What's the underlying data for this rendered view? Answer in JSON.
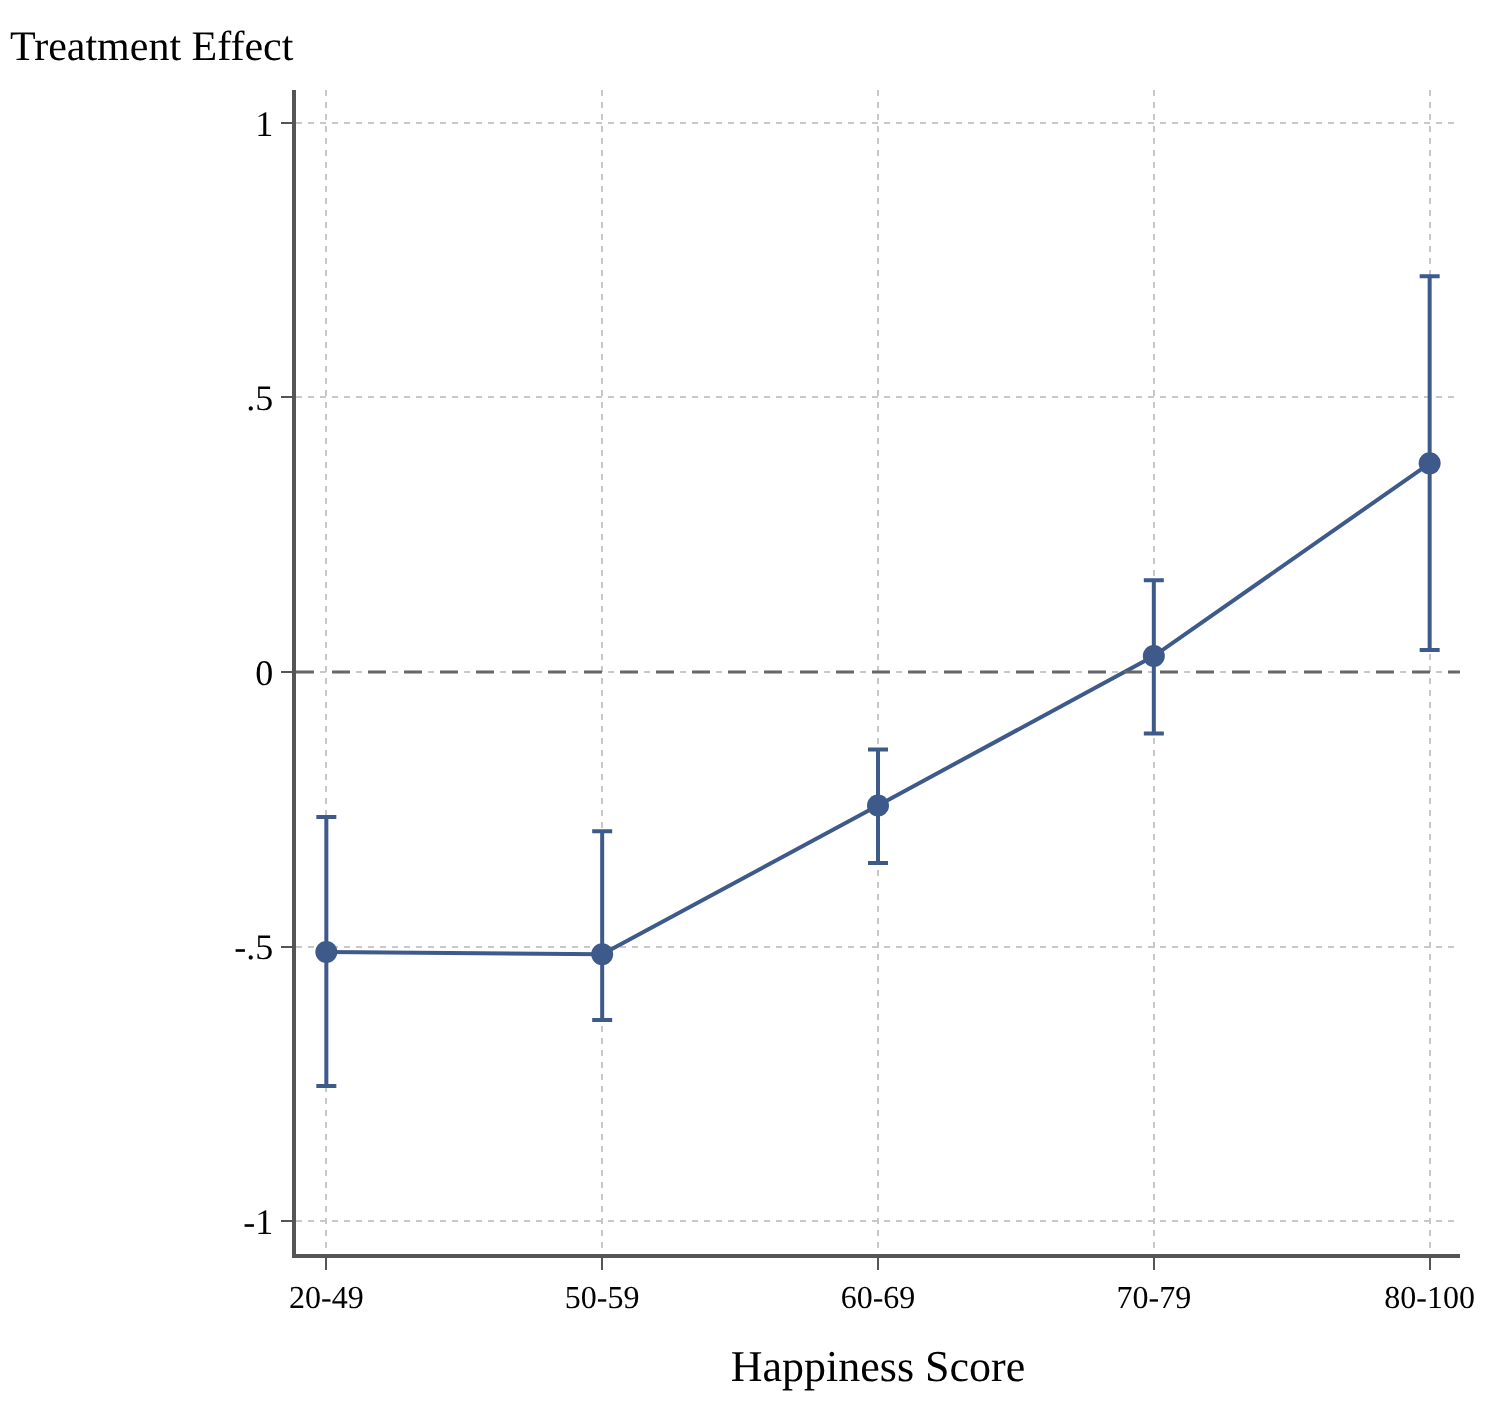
{
  "chart_data": {
    "type": "line",
    "xlabel": "Happiness Score",
    "ylabel": "Treatment Effect",
    "categories": [
      "20-49",
      "50-59",
      "60-69",
      "70-79",
      "80-100"
    ],
    "series": [
      {
        "color": "#3d5a8a",
        "values": [
          -0.51,
          -0.514,
          -0.243,
          0.029,
          0.38
        ],
        "errors": [
          [
            -0.754,
            -0.264
          ],
          [
            -0.634,
            -0.29
          ],
          [
            -0.348,
            -0.141
          ],
          [
            -0.112,
            0.167
          ],
          [
            0.04,
            0.721
          ]
        ]
      }
    ],
    "ylim": [
      -1.06,
      1.06
    ],
    "yticks": [
      {
        "value": -1,
        "label": "-1"
      },
      {
        "value": -0.5,
        "label": "-.5"
      },
      0,
      {
        "value": 0.5,
        "label": ".5"
      },
      1
    ],
    "grid": true,
    "marker": "circle",
    "line_style": "solid",
    "ref_lines": [
      {
        "axis": "y",
        "value": 0,
        "color": "#666666",
        "line_style": "dashed"
      }
    ]
  }
}
